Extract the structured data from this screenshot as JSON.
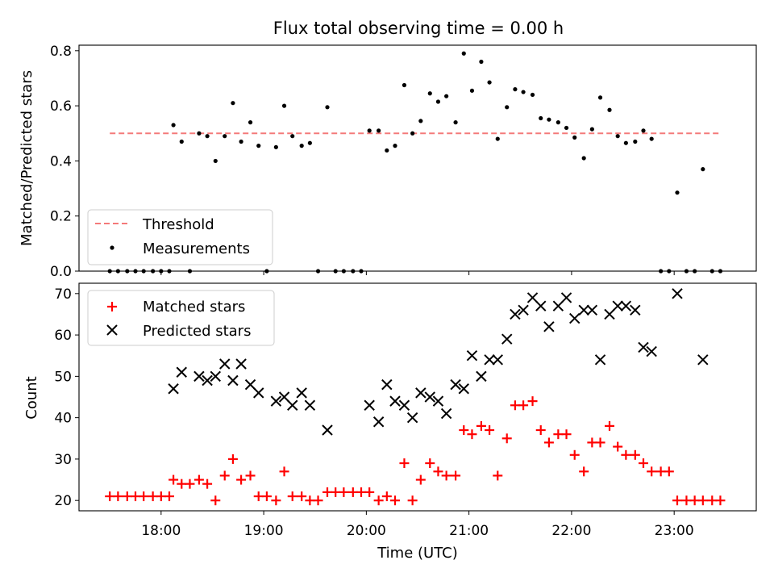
{
  "figure": {
    "title": "Flux total observing time = 0.00 h"
  },
  "colors": {
    "threshold": "#f47a7a",
    "measurements": "#000000",
    "matched": "#ff0000",
    "predicted": "#000000"
  },
  "chart_data": [
    {
      "type": "scatter",
      "ylabel": "Matched/Predicted stars",
      "ylim": [
        0,
        0.82
      ],
      "xlim": [
        17.2,
        23.8
      ],
      "yticks": [
        0.0,
        0.2,
        0.4,
        0.6,
        0.8
      ],
      "ytick_labels": [
        "0.0",
        "0.2",
        "0.4",
        "0.6",
        "0.8"
      ],
      "xticks": [
        18,
        19,
        20,
        21,
        22,
        23
      ],
      "legend": {
        "placement": "lower-left",
        "entries": [
          "Threshold",
          "Measurements"
        ]
      },
      "threshold": {
        "name": "Threshold",
        "value": 0.5,
        "x_range": [
          17.5,
          23.45
        ]
      },
      "series": [
        {
          "name": "Measurements",
          "x": [
            17.5,
            17.58,
            17.67,
            17.75,
            17.83,
            17.92,
            18.0,
            18.08,
            18.12,
            18.2,
            18.28,
            18.37,
            18.45,
            18.53,
            18.62,
            18.7,
            18.78,
            18.87,
            18.95,
            19.03,
            19.12,
            19.2,
            19.28,
            19.37,
            19.45,
            19.53,
            19.62,
            19.7,
            19.78,
            19.87,
            19.95,
            20.03,
            20.12,
            20.2,
            20.28,
            20.37,
            20.45,
            20.53,
            20.62,
            20.7,
            20.78,
            20.87,
            20.95,
            21.03,
            21.12,
            21.2,
            21.28,
            21.37,
            21.45,
            21.53,
            21.62,
            21.7,
            21.78,
            21.87,
            21.95,
            22.03,
            22.12,
            22.2,
            22.28,
            22.37,
            22.45,
            22.53,
            22.62,
            22.7,
            22.78,
            22.87,
            22.95,
            23.03,
            23.12,
            23.2,
            23.28,
            23.37,
            23.45
          ],
          "y": [
            0,
            0,
            0,
            0,
            0,
            0,
            0,
            0,
            0.53,
            0.47,
            0,
            0.5,
            0.49,
            0.4,
            0.49,
            0.61,
            0.47,
            0.54,
            0.455,
            0,
            0.45,
            0.6,
            0.49,
            0.455,
            0.465,
            0,
            0.595,
            0,
            0,
            0,
            0,
            0.51,
            0.51,
            0.438,
            0.455,
            0.675,
            0.5,
            0.545,
            0.645,
            0.615,
            0.635,
            0.54,
            0.79,
            0.655,
            0.76,
            0.685,
            0.48,
            0.595,
            0.66,
            0.65,
            0.64,
            0.555,
            0.55,
            0.54,
            0.52,
            0.485,
            0.41,
            0.515,
            0.63,
            0.585,
            0.49,
            0.465,
            0.47,
            0.51,
            0.48,
            0,
            0,
            0.285,
            0,
            0,
            0.37,
            0,
            0
          ]
        }
      ]
    },
    {
      "type": "scatter",
      "ylabel": "Count",
      "xlabel": "Time (UTC)",
      "ylim": [
        17.5,
        72.5
      ],
      "xlim": [
        17.2,
        23.8
      ],
      "yticks": [
        20,
        30,
        40,
        50,
        60,
        70
      ],
      "ytick_labels": [
        "20",
        "30",
        "40",
        "50",
        "60",
        "70"
      ],
      "xticks": [
        18,
        19,
        20,
        21,
        22,
        23
      ],
      "xtick_labels": [
        "18:00",
        "19:00",
        "20:00",
        "21:00",
        "22:00",
        "23:00"
      ],
      "legend": {
        "placement": "top-left",
        "entries": [
          "Matched stars",
          "Predicted stars"
        ]
      },
      "series": [
        {
          "name": "Matched stars",
          "marker": "+",
          "x": [
            17.5,
            17.58,
            17.67,
            17.75,
            17.83,
            17.92,
            18.0,
            18.08,
            18.12,
            18.2,
            18.28,
            18.37,
            18.45,
            18.53,
            18.62,
            18.7,
            18.78,
            18.87,
            18.95,
            19.03,
            19.12,
            19.2,
            19.28,
            19.37,
            19.45,
            19.53,
            19.62,
            19.7,
            19.78,
            19.87,
            19.95,
            20.03,
            20.12,
            20.2,
            20.28,
            20.37,
            20.45,
            20.53,
            20.62,
            20.7,
            20.78,
            20.87,
            20.95,
            21.03,
            21.12,
            21.2,
            21.28,
            21.37,
            21.45,
            21.53,
            21.62,
            21.7,
            21.78,
            21.87,
            21.95,
            22.03,
            22.12,
            22.2,
            22.28,
            22.37,
            22.45,
            22.53,
            22.62,
            22.7,
            22.78,
            22.87,
            22.95,
            23.03,
            23.12,
            23.2,
            23.28,
            23.37,
            23.45
          ],
          "y": [
            21,
            21,
            21,
            21,
            21,
            21,
            21,
            21,
            25,
            24,
            24,
            25,
            24,
            20,
            26,
            30,
            25,
            26,
            21,
            21,
            20,
            27,
            21,
            21,
            20,
            20,
            22,
            22,
            22,
            22,
            22,
            22,
            20,
            21,
            20,
            29,
            20,
            25,
            29,
            27,
            26,
            26,
            37,
            36,
            38,
            37,
            26,
            35,
            43,
            43,
            44,
            37,
            34,
            36,
            36,
            31,
            27,
            34,
            34,
            38,
            33,
            31,
            31,
            29,
            27,
            27,
            27,
            20,
            20,
            20,
            20,
            20,
            20
          ]
        },
        {
          "name": "Predicted stars",
          "marker": "x",
          "x": [
            18.12,
            18.2,
            18.37,
            18.45,
            18.53,
            18.62,
            18.7,
            18.78,
            18.87,
            18.95,
            19.12,
            19.2,
            19.28,
            19.37,
            19.45,
            19.62,
            20.03,
            20.12,
            20.2,
            20.28,
            20.37,
            20.45,
            20.53,
            20.62,
            20.7,
            20.78,
            20.87,
            20.95,
            21.03,
            21.12,
            21.2,
            21.28,
            21.37,
            21.45,
            21.53,
            21.62,
            21.7,
            21.78,
            21.87,
            21.95,
            22.03,
            22.12,
            22.2,
            22.28,
            22.37,
            22.45,
            22.53,
            22.62,
            22.7,
            22.78,
            23.03,
            23.28
          ],
          "y": [
            47,
            51,
            50,
            49,
            50,
            53,
            49,
            53,
            48,
            46,
            44,
            45,
            43,
            46,
            43,
            37,
            43,
            39,
            48,
            44,
            43,
            40,
            46,
            45,
            44,
            41,
            48,
            47,
            55,
            50,
            54,
            54,
            59,
            65,
            66,
            69,
            67,
            62,
            67,
            69,
            64,
            66,
            66,
            54,
            65,
            67,
            67,
            66,
            57,
            56,
            70,
            54
          ]
        }
      ]
    }
  ]
}
